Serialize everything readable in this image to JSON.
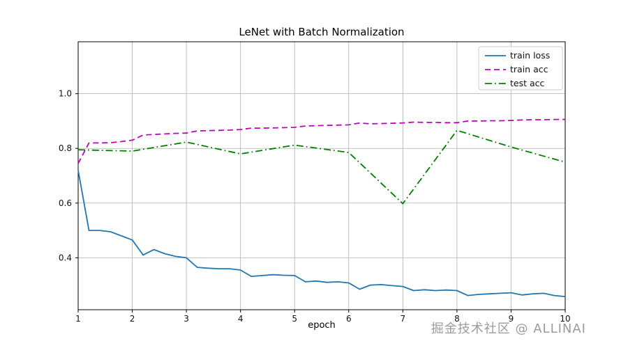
{
  "watermark": {
    "text": "掘金技术社区 @ ALLINAI"
  },
  "chart_data": {
    "type": "line",
    "title": "LeNet with Batch Normalization",
    "xlabel": "epoch",
    "ylabel": "",
    "xlim": [
      1,
      10
    ],
    "ylim": [
      0.21,
      1.19
    ],
    "xticks": [
      1,
      2,
      3,
      4,
      5,
      6,
      7,
      8,
      9,
      10
    ],
    "yticks": [
      0.4,
      0.6,
      0.8,
      1.0
    ],
    "grid": true,
    "legend_position": "upper right",
    "series": [
      {
        "name": "train loss",
        "color": "#1f77b4",
        "style": "solid",
        "x": [
          1.0,
          1.2,
          1.4,
          1.6,
          1.8,
          2.0,
          2.2,
          2.4,
          2.6,
          2.8,
          3.0,
          3.2,
          3.4,
          3.6,
          3.8,
          4.0,
          4.2,
          4.4,
          4.6,
          4.8,
          5.0,
          5.2,
          5.4,
          5.6,
          5.8,
          6.0,
          6.2,
          6.4,
          6.6,
          6.8,
          7.0,
          7.2,
          7.4,
          7.6,
          7.8,
          8.0,
          8.2,
          8.4,
          8.6,
          8.8,
          9.0,
          9.2,
          9.4,
          9.6,
          9.8,
          10.0
        ],
        "y": [
          0.72,
          0.5,
          0.5,
          0.495,
          0.48,
          0.465,
          0.41,
          0.43,
          0.415,
          0.405,
          0.4,
          0.365,
          0.362,
          0.36,
          0.36,
          0.355,
          0.332,
          0.335,
          0.338,
          0.336,
          0.335,
          0.312,
          0.315,
          0.31,
          0.312,
          0.308,
          0.285,
          0.3,
          0.302,
          0.298,
          0.295,
          0.28,
          0.283,
          0.28,
          0.282,
          0.28,
          0.262,
          0.266,
          0.268,
          0.27,
          0.272,
          0.264,
          0.268,
          0.27,
          0.262,
          0.258
        ]
      },
      {
        "name": "train acc",
        "color": "#bf00bf",
        "style": "dashed",
        "x": [
          1.0,
          1.2,
          1.4,
          1.6,
          1.8,
          2.0,
          2.2,
          2.4,
          2.6,
          2.8,
          3.0,
          3.2,
          3.4,
          3.6,
          3.8,
          4.0,
          4.2,
          4.4,
          4.6,
          4.8,
          5.0,
          5.2,
          5.4,
          5.6,
          5.8,
          6.0,
          6.2,
          6.4,
          6.6,
          6.8,
          7.0,
          7.2,
          7.4,
          7.6,
          7.8,
          8.0,
          8.2,
          8.4,
          8.6,
          8.8,
          9.0,
          9.2,
          9.4,
          9.6,
          9.8,
          10.0
        ],
        "y": [
          0.745,
          0.82,
          0.82,
          0.821,
          0.825,
          0.83,
          0.849,
          0.851,
          0.853,
          0.855,
          0.856,
          0.864,
          0.865,
          0.866,
          0.867,
          0.869,
          0.874,
          0.874,
          0.875,
          0.876,
          0.877,
          0.882,
          0.883,
          0.884,
          0.885,
          0.886,
          0.893,
          0.89,
          0.891,
          0.892,
          0.893,
          0.896,
          0.895,
          0.895,
          0.894,
          0.894,
          0.9,
          0.9,
          0.901,
          0.901,
          0.902,
          0.904,
          0.905,
          0.905,
          0.906,
          0.906
        ]
      },
      {
        "name": "test acc",
        "color": "#008000",
        "style": "dashdot",
        "x": [
          1,
          2,
          3,
          4,
          5,
          6,
          7,
          8,
          9,
          10
        ],
        "y": [
          0.795,
          0.79,
          0.823,
          0.78,
          0.812,
          0.785,
          0.598,
          0.866,
          0.805,
          0.75
        ]
      }
    ]
  }
}
